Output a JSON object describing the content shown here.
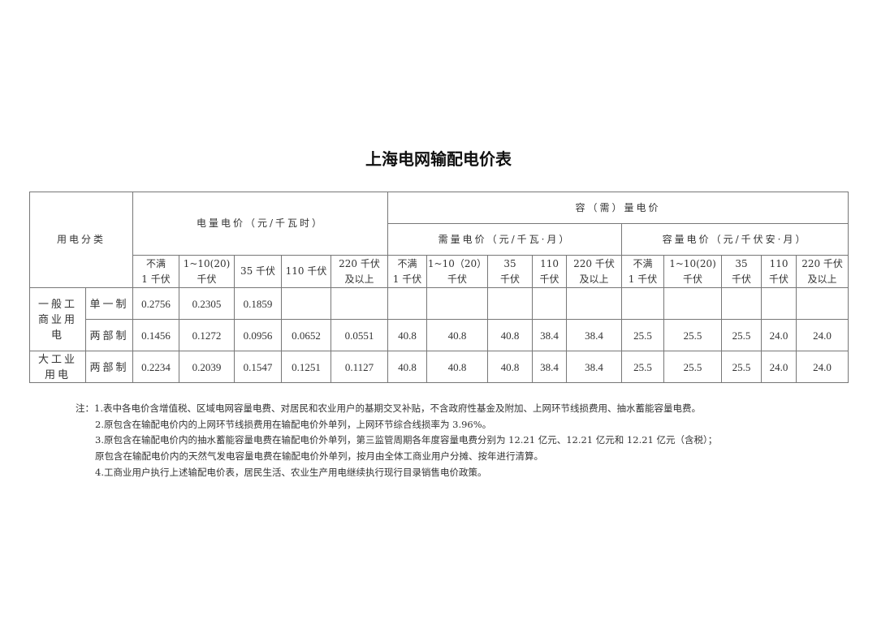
{
  "title": "上海电网输配电价表",
  "table": {
    "category_header": "用电分类",
    "energy_header": "电量电价（元/千瓦时）",
    "capdem_header": "容（需）量电价",
    "demand_header": "需量电价（元/千瓦·月）",
    "capacity_header": "容量电价（元/千伏安·月）",
    "energy_cols": [
      [
        "不满",
        "1 千伏"
      ],
      [
        "1~10(20)",
        "千伏"
      ],
      [
        "35 千伏",
        ""
      ],
      [
        "110 千伏",
        ""
      ],
      [
        "220 千伏",
        "及以上"
      ]
    ],
    "demand_cols": [
      [
        "不满",
        "1 千伏"
      ],
      [
        "1~10（20）",
        "千伏"
      ],
      [
        "35",
        "千伏"
      ],
      [
        "110",
        "千伏"
      ],
      [
        "220 千伏",
        "及以上"
      ]
    ],
    "capacity_cols": [
      [
        "不满",
        "1 千伏"
      ],
      [
        "1~10(20)",
        "千伏"
      ],
      [
        "35",
        "千伏"
      ],
      [
        "110",
        "千伏"
      ],
      [
        "220 千伏",
        "及以上"
      ]
    ],
    "groups": [
      {
        "name": "一般工商业用电",
        "rows": [
          {
            "type": "单一制",
            "values": [
              "0.2756",
              "0.2305",
              "0.1859",
              "",
              "",
              "",
              "",
              "",
              "",
              "",
              "",
              "",
              "",
              "",
              ""
            ]
          },
          {
            "type": "两部制",
            "values": [
              "0.1456",
              "0.1272",
              "0.0956",
              "0.0652",
              "0.0551",
              "40.8",
              "40.8",
              "40.8",
              "38.4",
              "38.4",
              "25.5",
              "25.5",
              "25.5",
              "24.0",
              "24.0"
            ]
          }
        ]
      },
      {
        "name": "大工业用电",
        "rows": [
          {
            "type": "两部制",
            "values": [
              "0.2234",
              "0.2039",
              "0.1547",
              "0.1251",
              "0.1127",
              "40.8",
              "40.8",
              "40.8",
              "38.4",
              "38.4",
              "25.5",
              "25.5",
              "25.5",
              "24.0",
              "24.0"
            ]
          }
        ]
      }
    ]
  },
  "notes": [
    "注：1.表中各电价含增值税、区域电网容量电费、对居民和农业用户的基期交叉补贴，不含政府性基金及附加、上网环节线损费用、抽水蓄能容量电费。",
    "2.原包含在输配电价内的上网环节线损费用在输配电价外单列，上网环节综合线损率为 3.96%。",
    "3.原包含在输配电价内的抽水蓄能容量电费在输配电价外单列，第三监管周期各年度容量电费分别为 12.21 亿元、12.21 亿元和 12.21 亿元（含税）；",
    "原包含在输配电价内的天然气发电容量电费在输配电价外单列，按月由全体工商业用户分摊、按年进行清算。",
    "4.工商业用户执行上述输配电价表，居民生活、农业生产用电继续执行现行目录销售电价政策。"
  ]
}
